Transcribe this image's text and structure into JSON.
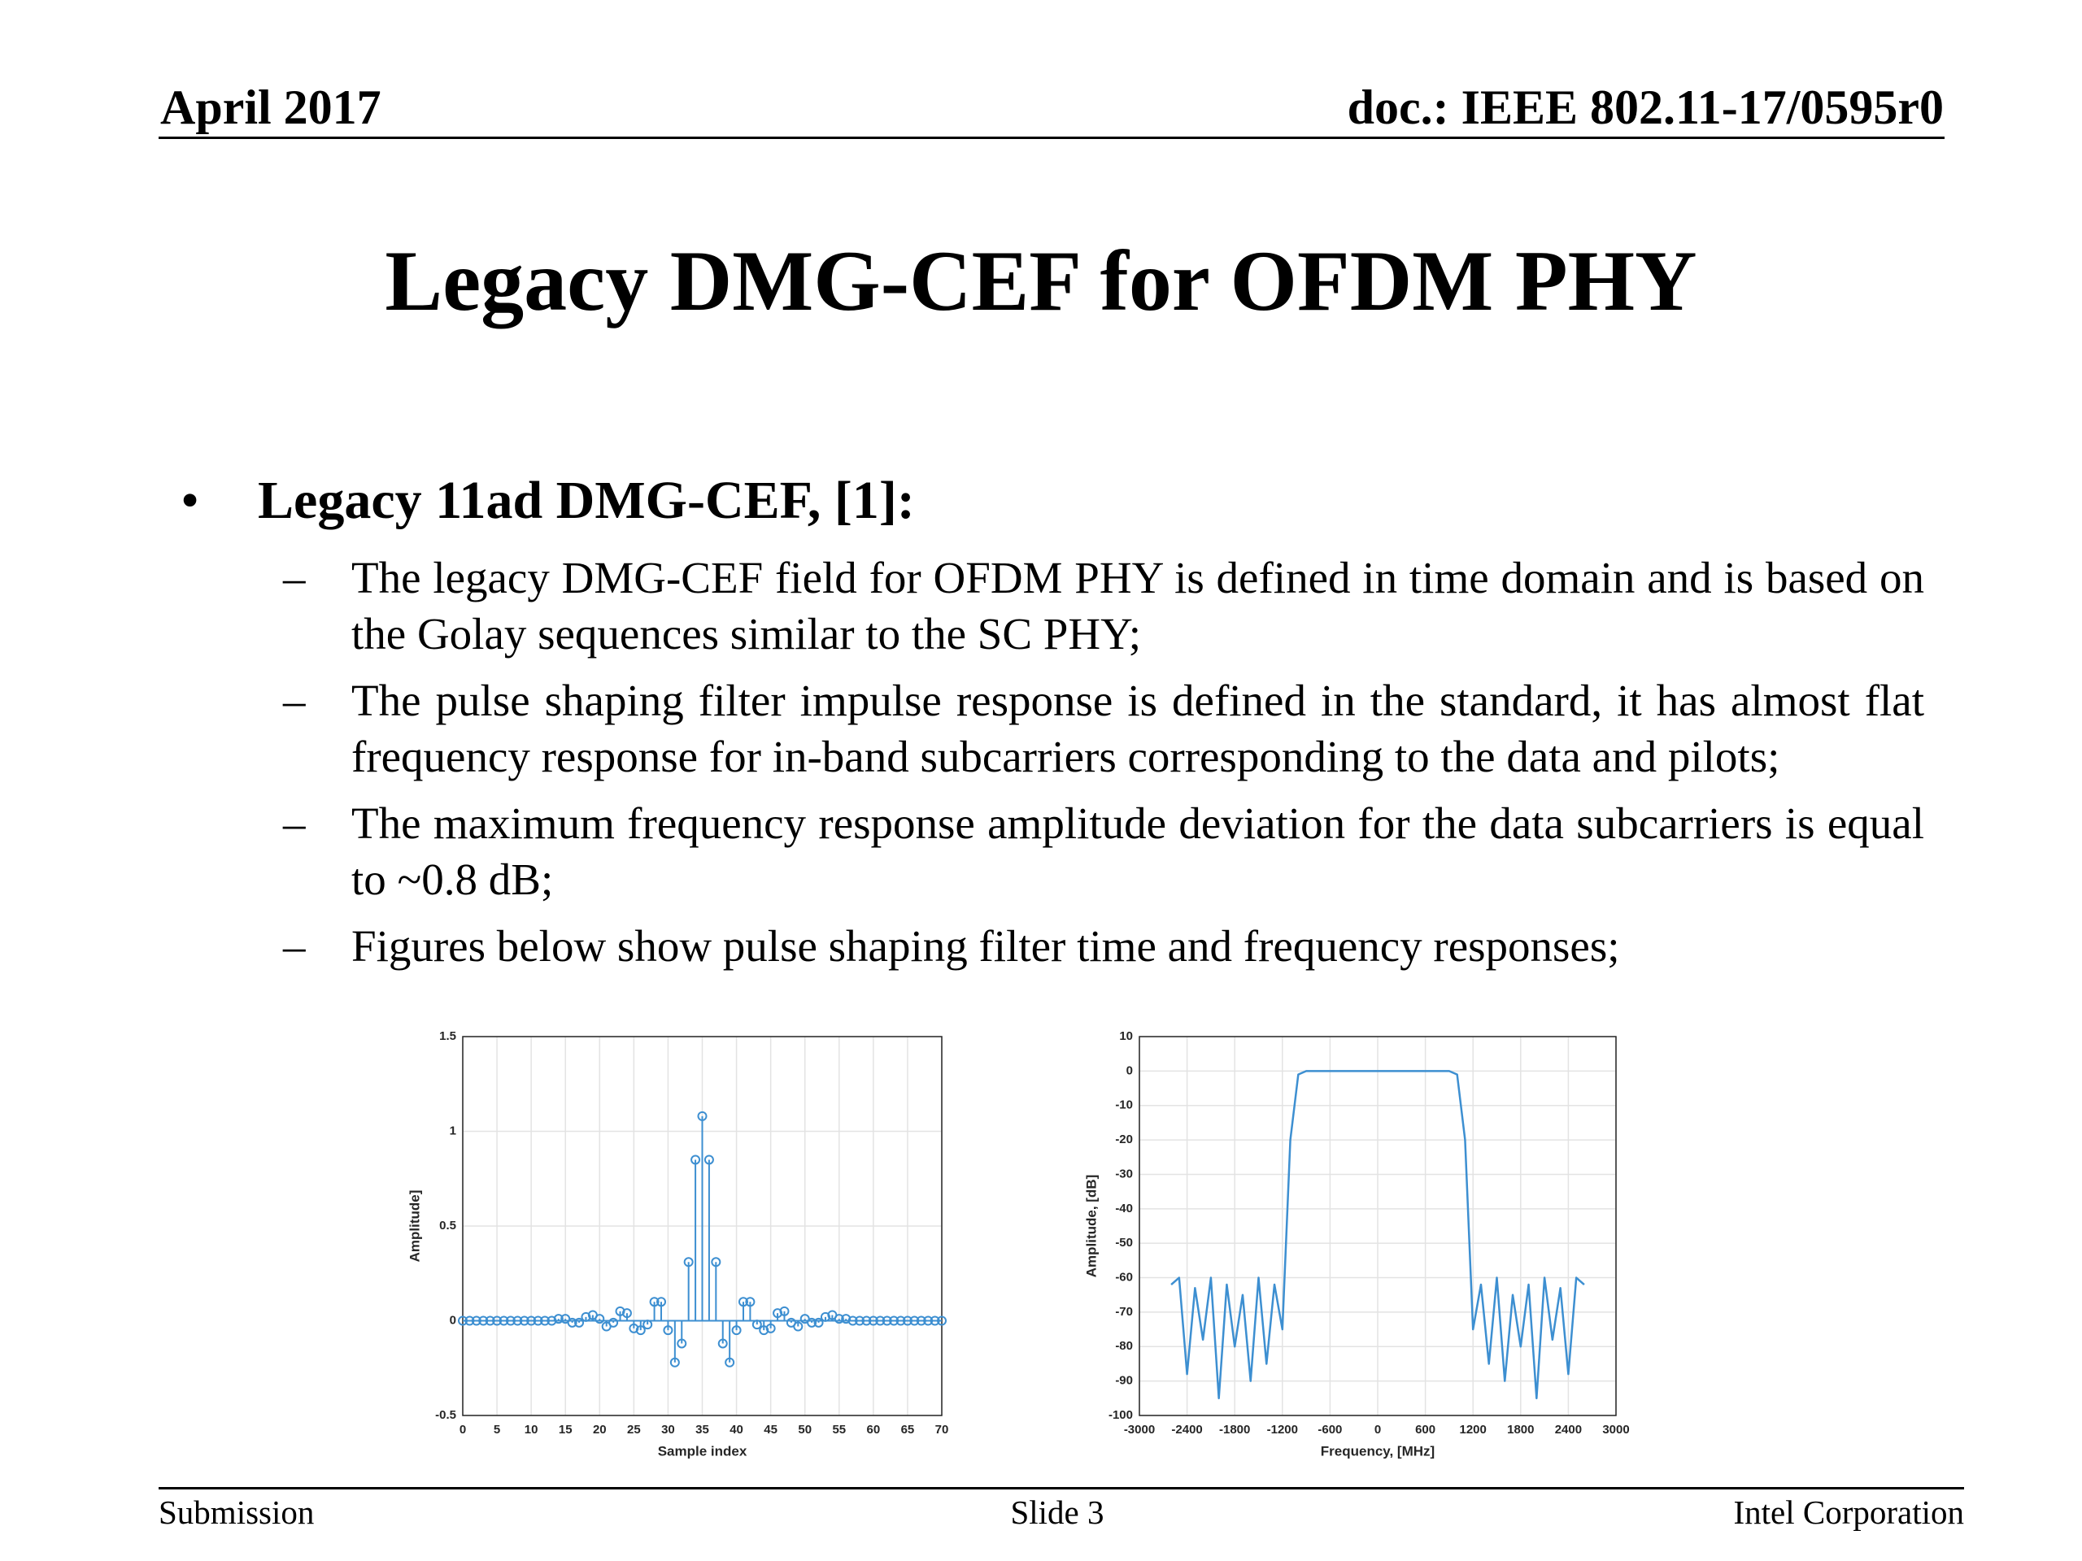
{
  "header": {
    "date": "April 2017",
    "doc": "doc.: IEEE 802.11-17/0595r0"
  },
  "title": "Legacy DMG-CEF for OFDM PHY",
  "bullet": {
    "heading": "Legacy 11ad DMG-CEF, [1]:",
    "items": [
      "The legacy DMG-CEF field for OFDM PHY is defined in time domain and is based on the Golay sequences similar to the SC PHY;",
      "The pulse shaping filter impulse response is defined in the standard, it has almost flat frequency response for in-band subcarriers corresponding to the data and pilots;",
      "The maximum frequency response amplitude deviation for the data subcarriers is equal to ~0.8 dB;",
      "Figures below show pulse shaping filter time and frequency responses;"
    ]
  },
  "chart_data": [
    {
      "type": "stem",
      "xlabel": "Sample index",
      "ylabel": "Amplitude]",
      "color": "#3d8fd1",
      "grid": true,
      "xlim": [
        0,
        70
      ],
      "ylim": [
        -0.5,
        1.5
      ],
      "xticks": [
        0,
        5,
        10,
        15,
        20,
        25,
        30,
        35,
        40,
        45,
        50,
        55,
        60,
        65,
        70
      ],
      "yticks": [
        -0.5,
        0,
        0.5,
        1,
        1.5
      ],
      "x": [
        0,
        1,
        2,
        3,
        4,
        5,
        6,
        7,
        8,
        9,
        10,
        11,
        12,
        13,
        14,
        15,
        16,
        17,
        18,
        19,
        20,
        21,
        22,
        23,
        24,
        25,
        26,
        27,
        28,
        29,
        30,
        31,
        32,
        33,
        34,
        35,
        36,
        37,
        38,
        39,
        40,
        41,
        42,
        43,
        44,
        45,
        46,
        47,
        48,
        49,
        50,
        51,
        52,
        53,
        54,
        55,
        56,
        57,
        58,
        59,
        60,
        61,
        62,
        63,
        64,
        65,
        66,
        67,
        68,
        69,
        70
      ],
      "values": [
        0,
        0,
        0,
        0,
        0,
        0,
        0,
        0,
        0,
        0,
        0,
        0,
        0,
        0,
        0.01,
        0.01,
        -0.01,
        -0.01,
        0.02,
        0.03,
        0.01,
        -0.03,
        -0.01,
        0.05,
        0.04,
        -0.04,
        -0.05,
        -0.02,
        0.1,
        0.1,
        -0.05,
        -0.22,
        -0.12,
        0.31,
        0.85,
        1.08,
        0.85,
        0.31,
        -0.12,
        -0.22,
        -0.05,
        0.1,
        0.1,
        -0.02,
        -0.05,
        -0.04,
        0.04,
        0.05,
        -0.01,
        -0.03,
        0.01,
        -0.01,
        -0.01,
        0.02,
        0.03,
        0.01,
        0.01,
        0,
        0,
        0,
        0,
        0,
        0,
        0,
        0,
        0,
        0,
        0,
        0,
        0,
        0
      ]
    },
    {
      "type": "line",
      "xlabel": "Frequency, [MHz]",
      "ylabel": "Amplitude, [dB]",
      "color": "#3d8fd1",
      "grid": true,
      "xlim": [
        -3000,
        3000
      ],
      "ylim": [
        -100,
        10
      ],
      "xticks": [
        -3000,
        -2400,
        -1800,
        -1200,
        -600,
        0,
        600,
        1200,
        1800,
        2400,
        3000
      ],
      "yticks": [
        -100,
        -90,
        -80,
        -70,
        -60,
        -50,
        -40,
        -30,
        -20,
        -10,
        0,
        10
      ],
      "x": [
        -2600,
        -2500,
        -2400,
        -2300,
        -2200,
        -2100,
        -2000,
        -1900,
        -1800,
        -1700,
        -1600,
        -1500,
        -1400,
        -1300,
        -1200,
        -1100,
        -1000,
        -900,
        -800,
        -700,
        -600,
        -500,
        -400,
        -300,
        -200,
        -100,
        0,
        100,
        200,
        300,
        400,
        500,
        600,
        700,
        800,
        900,
        1000,
        1100,
        1200,
        1300,
        1400,
        1500,
        1600,
        1700,
        1800,
        1900,
        2000,
        2100,
        2200,
        2300,
        2400,
        2500,
        2600
      ],
      "values": [
        -62,
        -60,
        -88,
        -63,
        -78,
        -60,
        -95,
        -62,
        -80,
        -65,
        -90,
        -60,
        -85,
        -62,
        -75,
        -20,
        -1,
        0,
        0,
        0,
        0,
        0,
        0,
        0,
        0,
        0,
        0,
        0,
        0,
        0,
        0,
        0,
        0,
        0,
        0,
        0,
        -1,
        -20,
        -75,
        -62,
        -85,
        -60,
        -90,
        -65,
        -80,
        -62,
        -95,
        -60,
        -78,
        -63,
        -88,
        -60,
        -62
      ]
    }
  ],
  "footer": {
    "left": "Submission",
    "center": "Slide 3",
    "right": "Intel Corporation"
  }
}
